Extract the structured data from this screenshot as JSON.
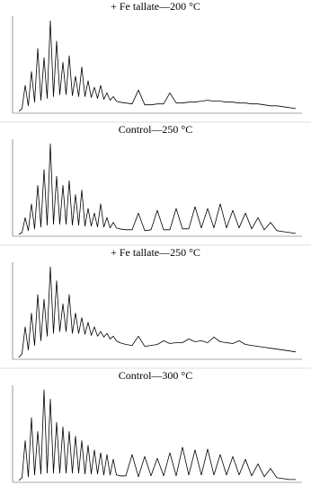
{
  "chart_data": [
    {
      "type": "line",
      "title": "+ Fe tallate—200 °C",
      "color": "#000000",
      "xlim": [
        3,
        49
      ],
      "ylim": [
        0,
        105
      ],
      "x": [
        4,
        4.5,
        5,
        5.5,
        6,
        6.5,
        7,
        7.5,
        8,
        8.5,
        9,
        9.5,
        10,
        10.5,
        11,
        11.5,
        12,
        12.5,
        13,
        13.5,
        14,
        14.5,
        15,
        15.5,
        16,
        16.5,
        17,
        17.5,
        18,
        18.5,
        19,
        19.5,
        20,
        21,
        22,
        23,
        24,
        25,
        26,
        27,
        28,
        29,
        30,
        31,
        32,
        33,
        34,
        35,
        36,
        37,
        38,
        39,
        40,
        41,
        42,
        43,
        44,
        45,
        46,
        47,
        48
      ],
      "values": [
        2,
        5,
        30,
        8,
        45,
        12,
        70,
        14,
        60,
        16,
        100,
        18,
        78,
        20,
        55,
        20,
        62,
        19,
        40,
        18,
        50,
        18,
        35,
        17,
        28,
        16,
        30,
        15,
        22,
        14,
        18,
        13,
        12,
        11,
        10,
        25,
        9,
        9,
        10,
        10,
        22,
        11,
        11,
        12,
        12,
        13,
        14,
        13,
        13,
        12,
        12,
        11,
        11,
        10,
        10,
        9,
        8,
        8,
        7,
        6,
        5
      ]
    },
    {
      "type": "line",
      "title": "Control—250 °C",
      "color": "#000000",
      "xlim": [
        3,
        49
      ],
      "ylim": [
        0,
        105
      ],
      "x": [
        4,
        4.5,
        5,
        5.5,
        6,
        6.5,
        7,
        7.5,
        8,
        8.5,
        9,
        9.5,
        10,
        10.5,
        11,
        11.5,
        12,
        12.5,
        13,
        13.5,
        14,
        14.5,
        15,
        15.5,
        16,
        16.5,
        17,
        17.5,
        18,
        18.5,
        19,
        19.5,
        20,
        21,
        22,
        23,
        24,
        25,
        26,
        27,
        28,
        29,
        30,
        31,
        32,
        33,
        34,
        35,
        36,
        37,
        38,
        39,
        40,
        41,
        42,
        43,
        44,
        45,
        46,
        47,
        48
      ],
      "values": [
        2,
        4,
        20,
        6,
        35,
        8,
        55,
        10,
        72,
        12,
        100,
        13,
        65,
        13,
        55,
        13,
        60,
        12,
        45,
        12,
        50,
        11,
        30,
        11,
        25,
        10,
        35,
        10,
        20,
        9,
        15,
        9,
        8,
        7,
        7,
        25,
        6,
        7,
        28,
        7,
        7,
        30,
        8,
        8,
        32,
        9,
        30,
        9,
        35,
        9,
        28,
        9,
        25,
        8,
        20,
        7,
        15,
        6,
        5,
        4,
        3
      ]
    },
    {
      "type": "line",
      "title": "+ Fe tallate—250 °C",
      "color": "#000000",
      "xlim": [
        3,
        49
      ],
      "ylim": [
        0,
        105
      ],
      "x": [
        4,
        4.5,
        5,
        5.5,
        6,
        6.5,
        7,
        7.5,
        8,
        8.5,
        9,
        9.5,
        10,
        10.5,
        11,
        11.5,
        12,
        12.5,
        13,
        13.5,
        14,
        14.5,
        15,
        15.5,
        16,
        16.5,
        17,
        17.5,
        18,
        18.5,
        19,
        19.5,
        20,
        21,
        22,
        23,
        24,
        25,
        26,
        27,
        28,
        29,
        30,
        31,
        32,
        33,
        34,
        35,
        36,
        37,
        38,
        39,
        40,
        41,
        42,
        43,
        44,
        45,
        46,
        47,
        48
      ],
      "values": [
        2,
        6,
        35,
        10,
        50,
        15,
        70,
        20,
        65,
        25,
        100,
        28,
        85,
        30,
        60,
        30,
        70,
        28,
        50,
        28,
        45,
        27,
        40,
        26,
        35,
        25,
        30,
        24,
        28,
        22,
        25,
        20,
        18,
        16,
        15,
        25,
        14,
        15,
        16,
        20,
        17,
        18,
        18,
        22,
        19,
        20,
        18,
        24,
        19,
        18,
        17,
        20,
        16,
        15,
        14,
        13,
        12,
        11,
        10,
        9,
        8
      ]
    },
    {
      "type": "line",
      "title": "Control—300 °C",
      "color": "#000000",
      "xlim": [
        3,
        49
      ],
      "ylim": [
        0,
        105
      ],
      "x": [
        4,
        4.5,
        5,
        5.5,
        6,
        6.5,
        7,
        7.5,
        8,
        8.5,
        9,
        9.5,
        10,
        10.5,
        11,
        11.5,
        12,
        12.5,
        13,
        13.5,
        14,
        14.5,
        15,
        15.5,
        16,
        16.5,
        17,
        17.5,
        18,
        18.5,
        19,
        19.5,
        20,
        21,
        22,
        23,
        24,
        25,
        26,
        27,
        28,
        29,
        30,
        31,
        32,
        33,
        34,
        35,
        36,
        37,
        38,
        39,
        40,
        41,
        42,
        43,
        44,
        45,
        46,
        47,
        48
      ],
      "values": [
        2,
        5,
        45,
        6,
        70,
        8,
        55,
        9,
        100,
        10,
        90,
        10,
        65,
        10,
        60,
        10,
        55,
        10,
        50,
        10,
        45,
        9,
        40,
        9,
        35,
        9,
        32,
        8,
        30,
        8,
        25,
        8,
        7,
        7,
        30,
        6,
        28,
        7,
        26,
        7,
        32,
        7,
        38,
        8,
        35,
        8,
        36,
        8,
        30,
        8,
        28,
        8,
        25,
        7,
        20,
        6,
        15,
        5,
        4,
        3,
        3
      ]
    }
  ]
}
